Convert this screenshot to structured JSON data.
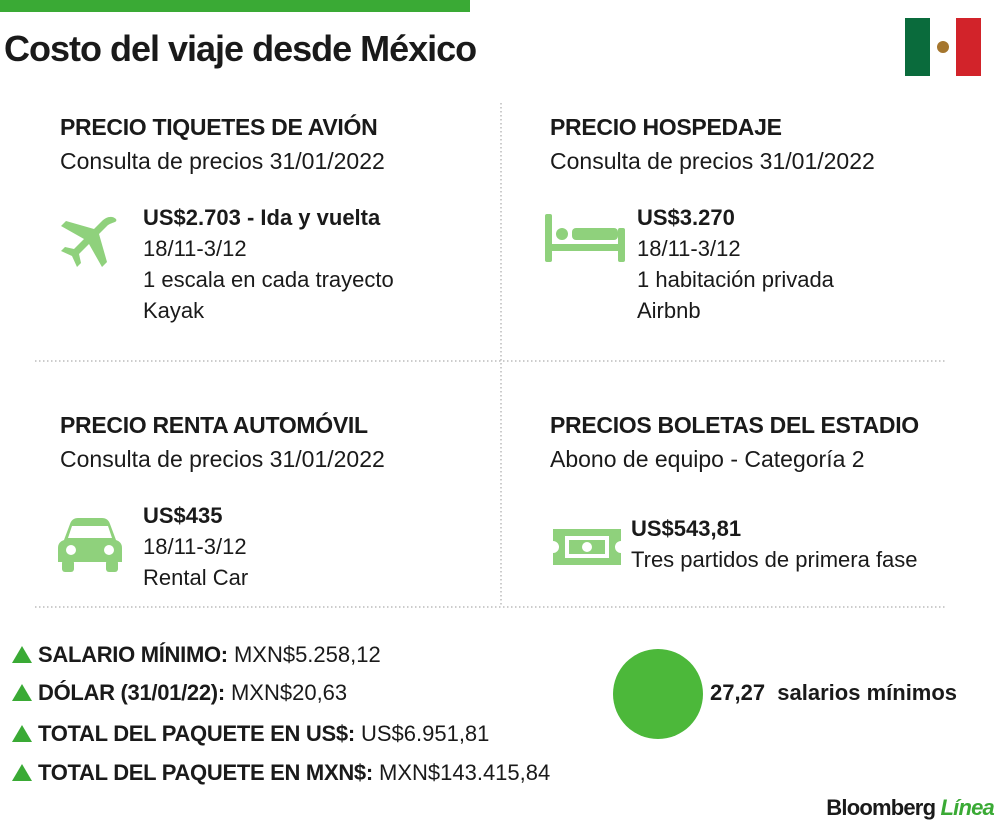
{
  "header": {
    "title": "Costo del viaje desde México"
  },
  "sections": [
    {
      "title": "PRECIO TIQUETES DE AVIÓN",
      "subtitle": "Consulta de precios 31/01/2022",
      "price": "US$2.703 - Ida y vuelta",
      "lines": [
        "18/11-3/12",
        "1 escala en cada trayecto",
        "Kayak"
      ]
    },
    {
      "title": "PRECIO HOSPEDAJE",
      "subtitle": "Consulta de precios 31/01/2022",
      "price": "US$3.270",
      "lines": [
        "18/11-3/12",
        "1 habitación privada",
        "Airbnb"
      ]
    },
    {
      "title": "PRECIO RENTA AUTOMÓVIL",
      "subtitle": "Consulta de precios 31/01/2022",
      "price": "US$435",
      "lines": [
        "18/11-3/12",
        "Rental Car"
      ]
    },
    {
      "title": "PRECIOS BOLETAS DEL ESTADIO",
      "subtitle": "Abono de equipo - Categoría 2",
      "price": "US$543,81",
      "lines": [
        "Tres partidos de primera fase"
      ]
    }
  ],
  "summary": [
    {
      "label": "SALARIO MÍNIMO:",
      "value": "MXN$5.258,12"
    },
    {
      "label": "DÓLAR (31/01/22):",
      "value": "MXN$20,63"
    },
    {
      "label": "TOTAL DEL PAQUETE EN US$:",
      "value": "US$6.951,81"
    },
    {
      "label": "TOTAL DEL PAQUETE EN MXN$:",
      "value": "MXN$143.415,84"
    }
  ],
  "highlight": {
    "value": "27,27",
    "label": "salarios mínimos"
  },
  "footer": {
    "brand": "Bloomberg",
    "brand_accent": "Línea"
  }
}
